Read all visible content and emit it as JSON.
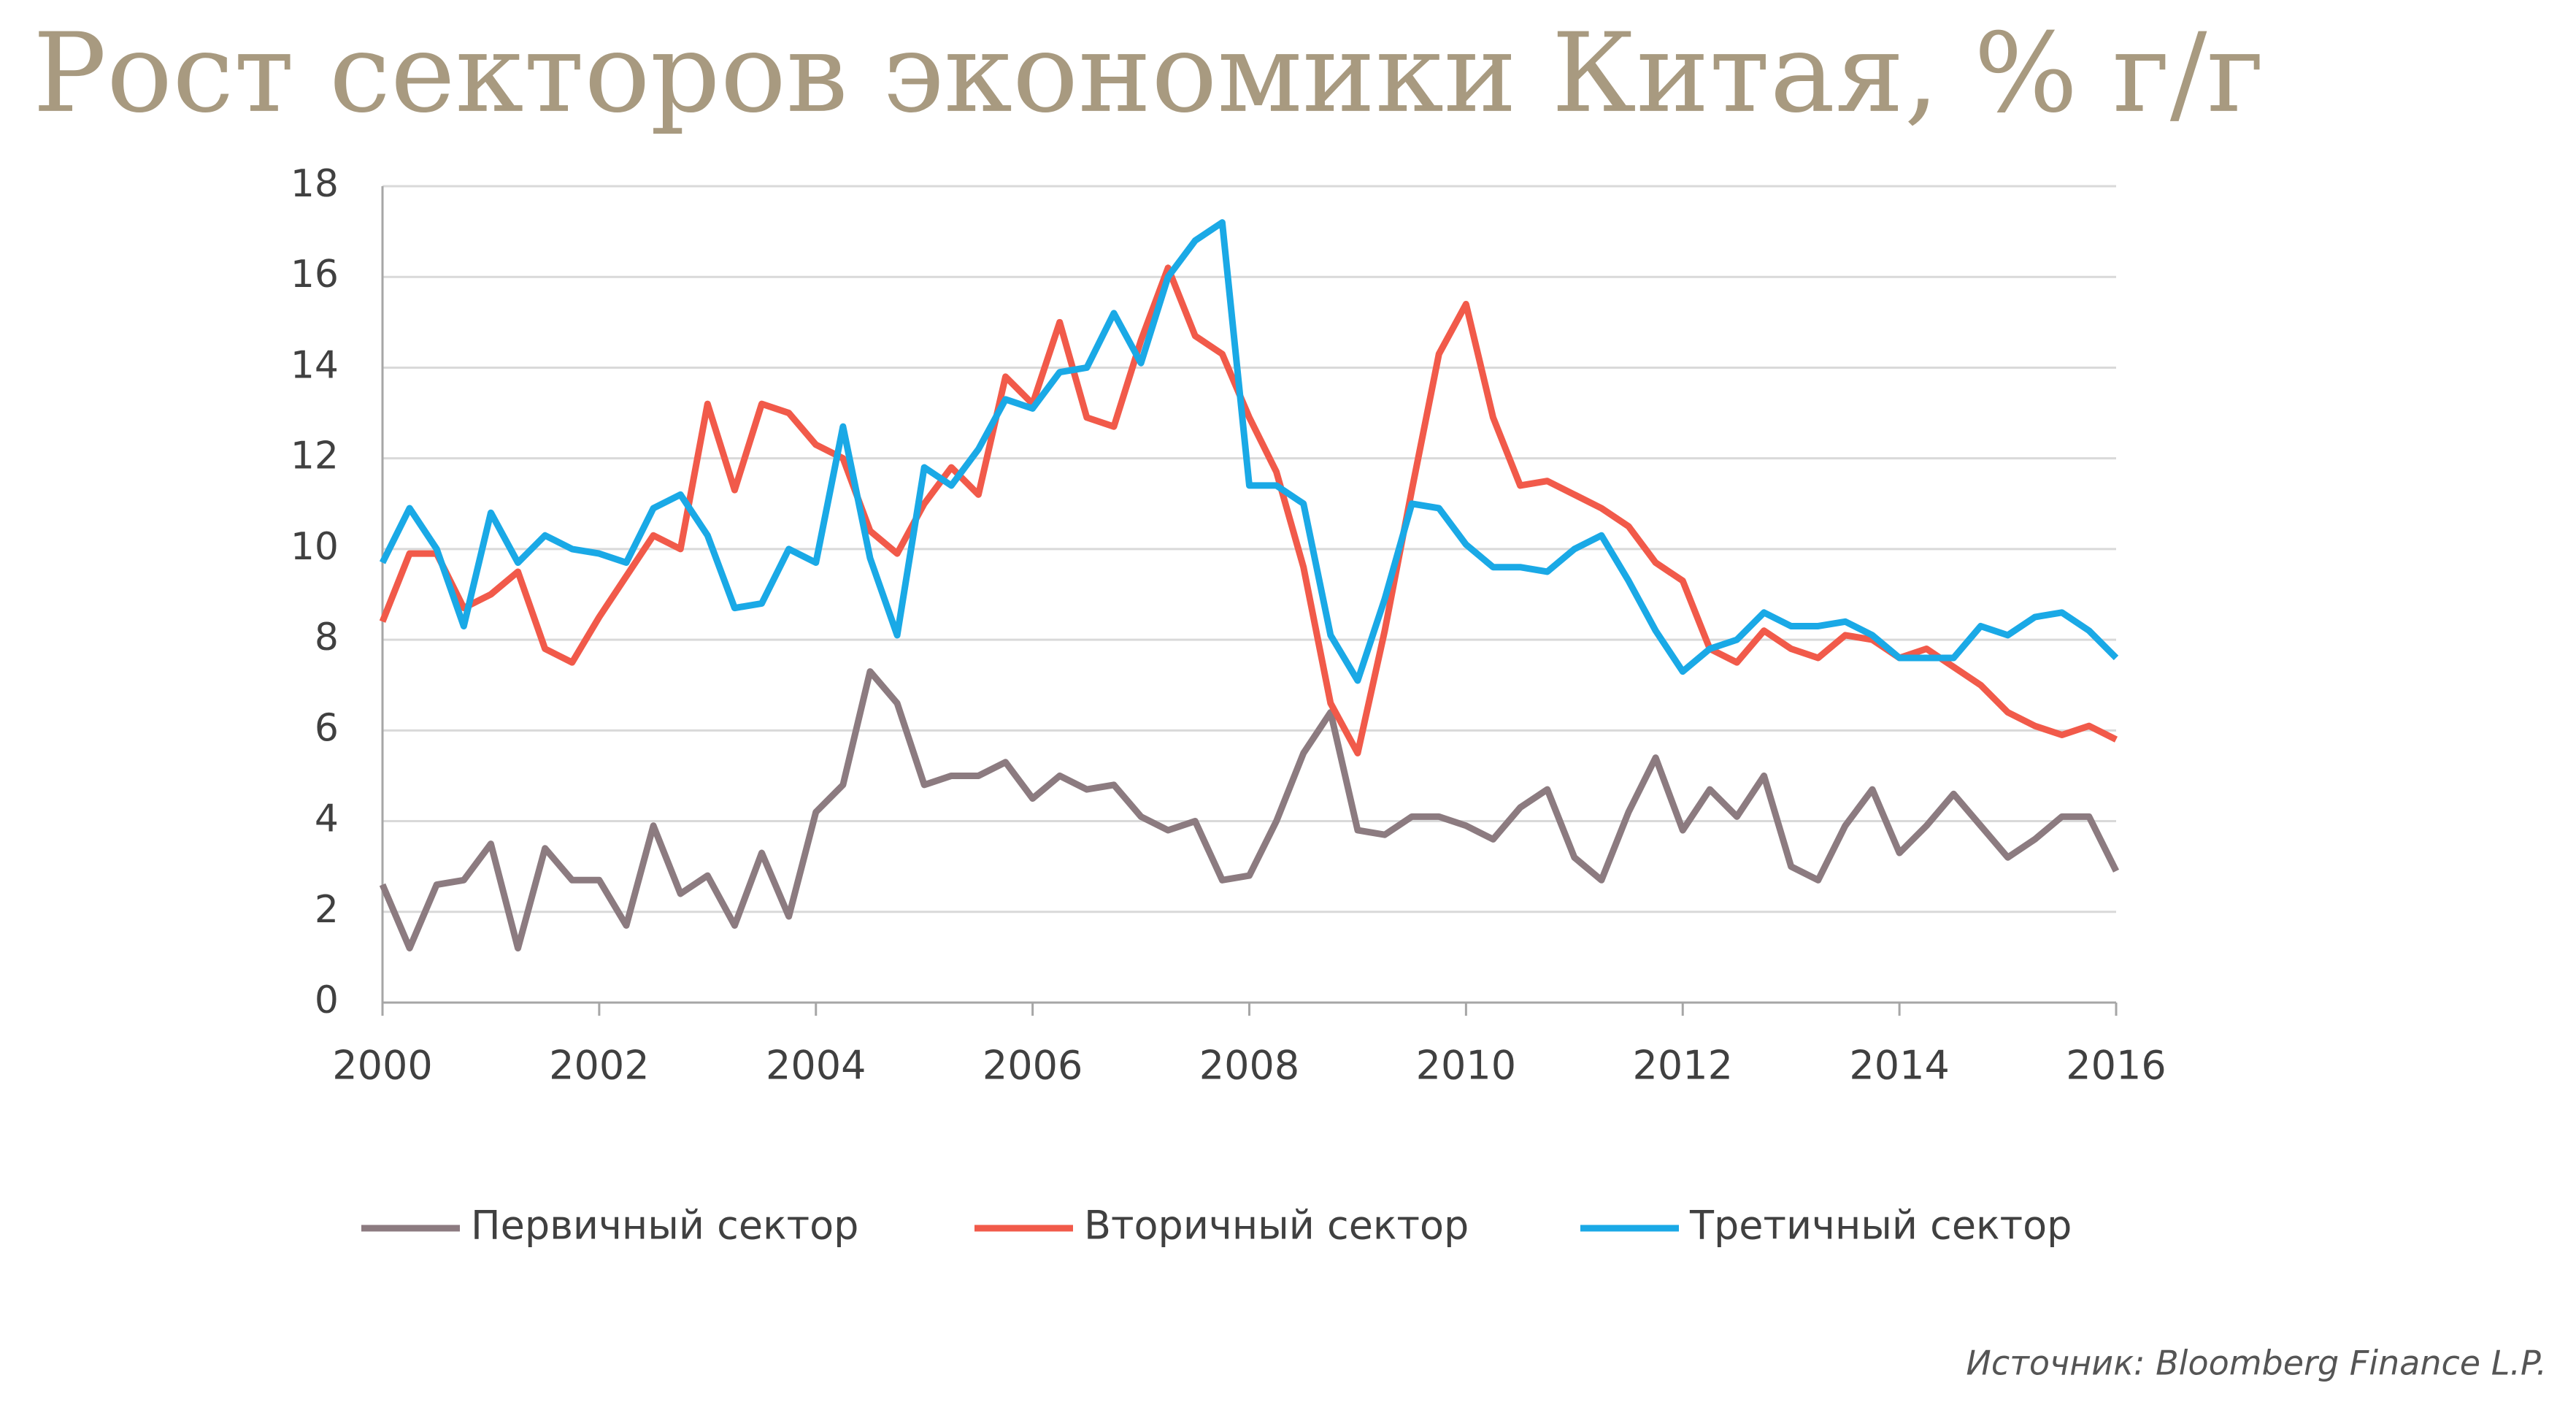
{
  "chart_data": {
    "type": "line",
    "title": "Рост секторов экономики Китая, % г/г",
    "source": "Источник: Bloomberg Finance L.P.",
    "x": [
      2000,
      2000.25,
      2000.5,
      2000.75,
      2001,
      2001.25,
      2001.5,
      2001.75,
      2002,
      2002.25,
      2002.5,
      2002.75,
      2003,
      2003.25,
      2003.5,
      2003.75,
      2004,
      2004.25,
      2004.5,
      2004.75,
      2005,
      2005.25,
      2005.5,
      2005.75,
      2006,
      2006.25,
      2006.5,
      2006.75,
      2007,
      2007.25,
      2007.5,
      2007.75,
      2008,
      2008.25,
      2008.5,
      2008.75,
      2009,
      2009.25,
      2009.5,
      2009.75,
      2010,
      2010.25,
      2010.5,
      2010.75,
      2011,
      2011.25,
      2011.5,
      2011.75,
      2012,
      2012.25,
      2012.5,
      2012.75,
      2013,
      2013.25,
      2013.5,
      2013.75,
      2014,
      2014.25,
      2014.5,
      2014.75,
      2015,
      2015.25,
      2015.5,
      2015.75,
      2016
    ],
    "series": [
      {
        "name": "Первичный сектор",
        "color": "#8c7b80",
        "values": [
          2.6,
          1.2,
          2.6,
          2.7,
          3.5,
          1.2,
          3.4,
          2.7,
          2.7,
          1.7,
          3.9,
          2.4,
          2.8,
          1.7,
          3.3,
          1.9,
          4.2,
          4.8,
          7.3,
          6.6,
          4.8,
          5.0,
          5.0,
          5.3,
          4.5,
          5.0,
          4.7,
          4.8,
          4.1,
          3.8,
          4.0,
          2.7,
          2.8,
          4.0,
          5.5,
          6.4,
          3.8,
          3.7,
          4.1,
          4.1,
          3.9,
          3.6,
          4.3,
          4.7,
          3.2,
          2.7,
          4.2,
          5.4,
          3.8,
          4.7,
          4.1,
          5.0,
          3.0,
          2.7,
          3.9,
          4.7,
          3.3,
          3.9,
          4.6,
          3.9,
          3.2,
          3.6,
          4.1,
          4.1,
          2.9
        ]
      },
      {
        "name": "Вторичный сектор",
        "color": "#f15a4a",
        "values": [
          8.4,
          9.9,
          9.9,
          8.7,
          9.0,
          9.5,
          7.8,
          7.5,
          8.5,
          9.4,
          10.3,
          10.0,
          13.2,
          11.3,
          13.2,
          13.0,
          12.3,
          12.0,
          10.4,
          9.9,
          11.0,
          11.8,
          11.2,
          13.8,
          13.2,
          15.0,
          12.9,
          12.7,
          14.6,
          16.2,
          14.7,
          14.3,
          12.9,
          11.7,
          9.6,
          6.6,
          5.5,
          8.2,
          11.3,
          14.3,
          15.4,
          12.9,
          11.4,
          11.5,
          11.2,
          10.9,
          10.5,
          9.7,
          9.3,
          7.8,
          7.5,
          8.2,
          7.8,
          7.6,
          8.1,
          8.0,
          7.6,
          7.8,
          7.4,
          7.0,
          6.4,
          6.1,
          5.9,
          6.1,
          5.8
        ]
      },
      {
        "name": "Третичный сектор",
        "color": "#1aa9e6",
        "values": [
          9.7,
          10.9,
          10.0,
          8.3,
          10.8,
          9.7,
          10.3,
          10.0,
          9.9,
          9.7,
          10.9,
          11.2,
          10.3,
          8.7,
          8.8,
          10.0,
          9.7,
          12.7,
          9.8,
          8.1,
          11.8,
          11.4,
          12.2,
          13.3,
          13.1,
          13.9,
          14.0,
          15.2,
          14.1,
          16.0,
          16.8,
          17.2,
          11.4,
          11.4,
          11.0,
          8.1,
          7.1,
          8.9,
          11.0,
          10.9,
          10.1,
          9.6,
          9.6,
          9.5,
          10.0,
          10.3,
          9.3,
          8.2,
          7.3,
          7.8,
          8.0,
          8.6,
          8.3,
          8.3,
          8.4,
          8.1,
          7.6,
          7.6,
          7.6,
          8.3,
          8.1,
          8.5,
          8.6,
          8.2,
          7.6
        ]
      }
    ],
    "xlim": [
      2000,
      2016
    ],
    "xticks": [
      2000,
      2002,
      2004,
      2006,
      2008,
      2010,
      2012,
      2014,
      2016
    ],
    "ylim": [
      0,
      18
    ],
    "yticks": [
      0,
      2,
      4,
      6,
      8,
      10,
      12,
      14,
      16,
      18
    ],
    "grid": true
  }
}
